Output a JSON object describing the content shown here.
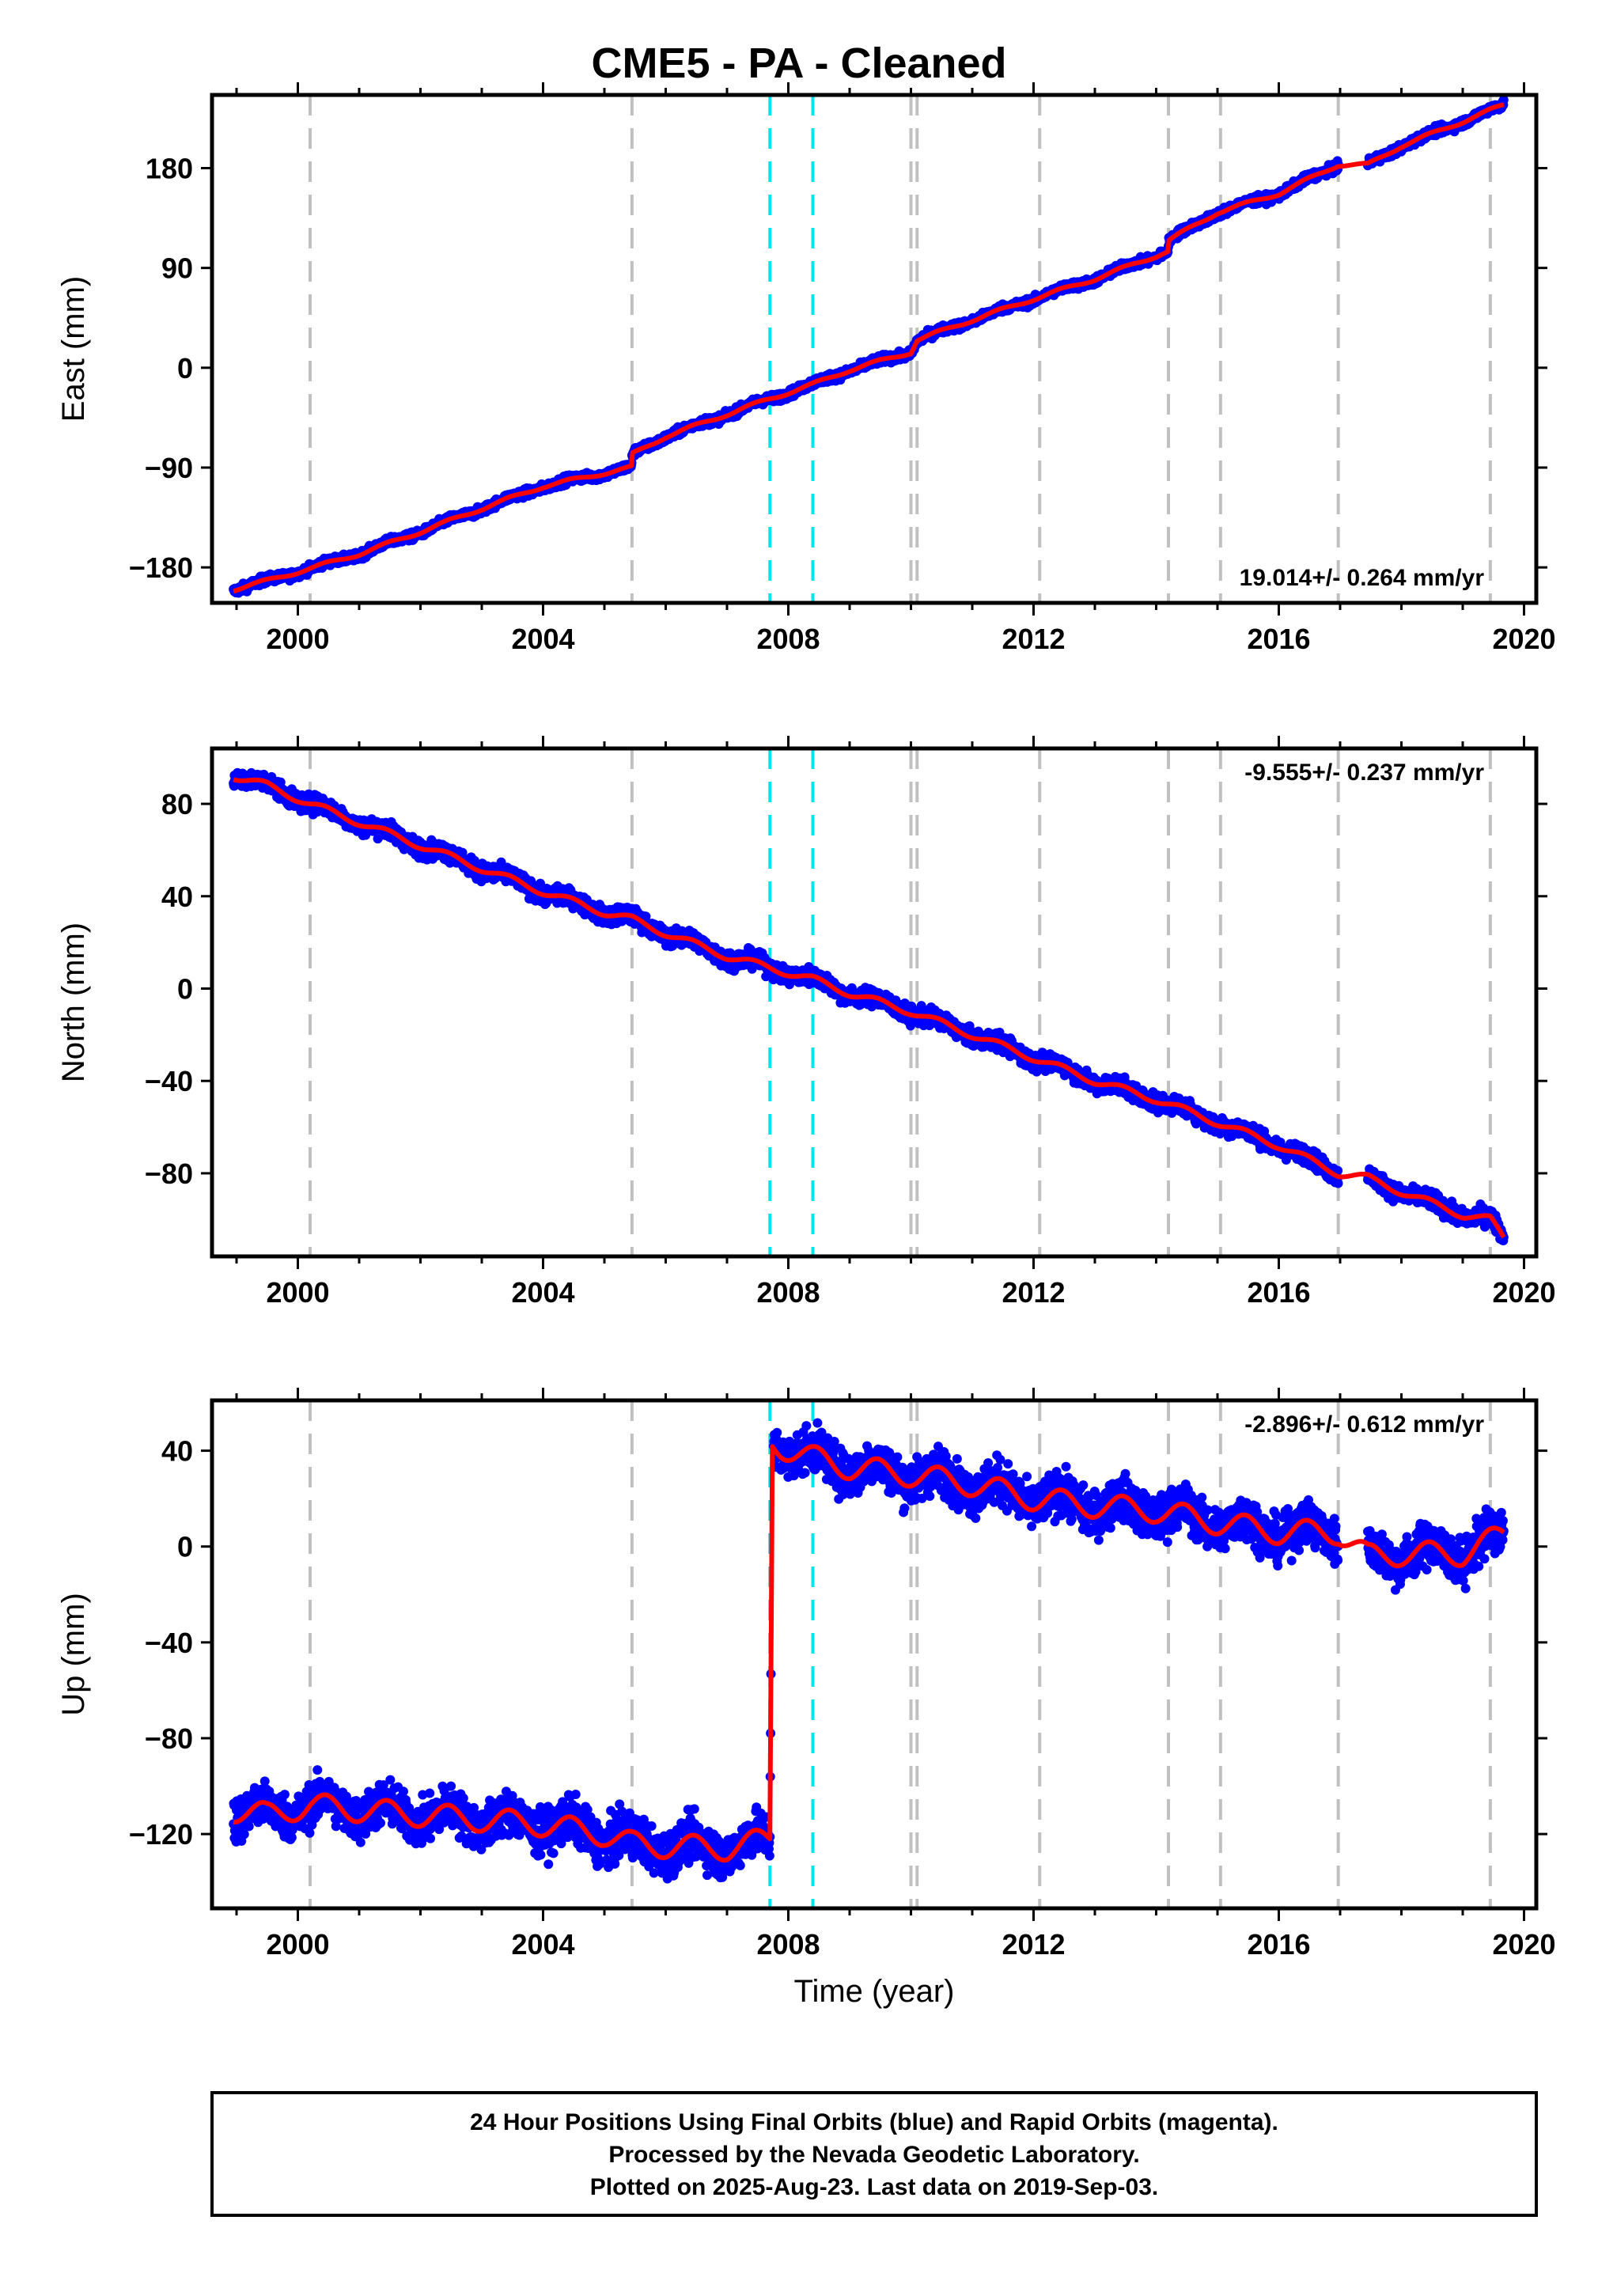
{
  "title": "CME5  - PA - Cleaned",
  "colors": {
    "points": "#0000ff",
    "model": "#ff0000",
    "equipment_change": "#c0c0c0",
    "event": "#00e5ee",
    "frame": "#000000"
  },
  "footer": {
    "line1": "24 Hour Positions Using Final Orbits (blue) and Rapid Orbits (magenta).",
    "line2": "Processed by the Nevada Geodetic Laboratory.",
    "line3": "Plotted on 2025-Aug-23. Last data on 2019-Sep-03."
  },
  "chart_data": [
    {
      "type": "scatter",
      "component": "east",
      "ylabel": "East (mm)",
      "xlabel": "",
      "rate_label": "19.014+/- 0.264 mm/yr",
      "xlim": [
        1998.6,
        2020.2
      ],
      "ylim": [
        -212,
        246
      ],
      "yticks": [
        -180,
        -90,
        0,
        90,
        180
      ],
      "xticks": [
        2000,
        2004,
        2008,
        2012,
        2016,
        2020
      ],
      "grid": false,
      "equipment_change_years": [
        2000.2,
        2005.45,
        2010.0,
        2010.1,
        2012.1,
        2014.2,
        2015.05,
        2016.97,
        2019.45
      ],
      "event_years": [
        2007.7,
        2008.4
      ],
      "series": [
        {
          "values_x": [
            1998.95,
            1999.5,
            2000.2,
            2001.0,
            2002.0,
            2003.0,
            2004.0,
            2005.0,
            2005.44,
            2005.46,
            2006.0,
            2007.0,
            2007.7,
            2008.4,
            2009.0,
            2010.0,
            2010.1,
            2011.0,
            2012.0,
            2013.0,
            2014.19,
            2014.21,
            2015.0,
            2016.0,
            2016.97,
            2017.45,
            2018.0,
            2019.0,
            2019.67
          ],
          "values_y": [
            -200,
            -192,
            -181,
            -168,
            -148,
            -127,
            -107,
            -95,
            -90,
            -78,
            -62,
            -42,
            -28,
            -15,
            -2,
            14,
            25,
            43,
            62,
            80,
            105,
            115,
            140,
            157,
            183,
            183,
            200,
            222,
            237
          ]
        }
      ]
    },
    {
      "type": "scatter",
      "component": "north",
      "ylabel": "North (mm)",
      "xlabel": "",
      "rate_label": "-9.555+/- 0.237 mm/yr",
      "xlim": [
        1998.6,
        2020.2
      ],
      "ylim": [
        -116,
        104
      ],
      "yticks": [
        -80,
        -40,
        0,
        40,
        80
      ],
      "xticks": [
        2000,
        2004,
        2008,
        2012,
        2016,
        2020
      ],
      "grid": false,
      "equipment_change_years": [
        2000.2,
        2005.45,
        2010.0,
        2010.1,
        2012.1,
        2014.2,
        2015.05,
        2016.97,
        2019.45
      ],
      "event_years": [
        2007.7,
        2008.4
      ],
      "series": [
        {
          "values_x": [
            1998.95,
            1999.5,
            2000.2,
            2001.0,
            2002.0,
            2003.0,
            2004.0,
            2005.0,
            2005.45,
            2006.0,
            2007.0,
            2007.7,
            2008.4,
            2009.0,
            2010.0,
            2011.0,
            2012.0,
            2013.0,
            2014.0,
            2015.0,
            2016.0,
            2016.97,
            2017.45,
            2018.0,
            2019.0,
            2019.45,
            2019.67
          ],
          "values_y": [
            92,
            88,
            80,
            72,
            62,
            52,
            42,
            33,
            30,
            24,
            14,
            9,
            4,
            -2,
            -10,
            -20,
            -30,
            -40,
            -48,
            -58,
            -68,
            -80,
            -82,
            -88,
            -98,
            -100,
            -108
          ]
        }
      ]
    },
    {
      "type": "scatter",
      "component": "up",
      "ylabel": "Up (mm)",
      "xlabel": "Time (year)",
      "rate_label": "-2.896+/- 0.612 mm/yr",
      "xlim": [
        1998.6,
        2020.2
      ],
      "ylim": [
        -151,
        61
      ],
      "yticks": [
        -120,
        -80,
        -40,
        0,
        40
      ],
      "xticks": [
        2000,
        2004,
        2008,
        2012,
        2016,
        2020
      ],
      "grid": false,
      "equipment_change_years": [
        2000.2,
        2005.45,
        2010.0,
        2010.1,
        2012.1,
        2014.2,
        2015.05,
        2016.97,
        2019.45
      ],
      "event_years": [
        2007.7,
        2008.4
      ],
      "offset_year": 2007.72,
      "series": [
        {
          "values_x": [
            1998.95,
            1999.5,
            2000.2,
            2001.0,
            2002.0,
            2003.0,
            2004.0,
            2005.0,
            2005.45,
            2006.0,
            2007.0,
            2007.7,
            2007.74,
            2008.4,
            2009.0,
            2010.0,
            2011.0,
            2012.0,
            2013.0,
            2014.0,
            2015.0,
            2016.0,
            2016.97,
            2017.45,
            2018.0,
            2019.0,
            2019.67
          ],
          "values_y": [
            -110,
            -112,
            -108,
            -110,
            -112,
            -114,
            -116,
            -120,
            -124,
            -125,
            -126,
            -122,
            43,
            37,
            33,
            30,
            26,
            20,
            17,
            15,
            10,
            6,
            6,
            -4,
            -3,
            -3,
            5
          ]
        }
      ]
    }
  ]
}
